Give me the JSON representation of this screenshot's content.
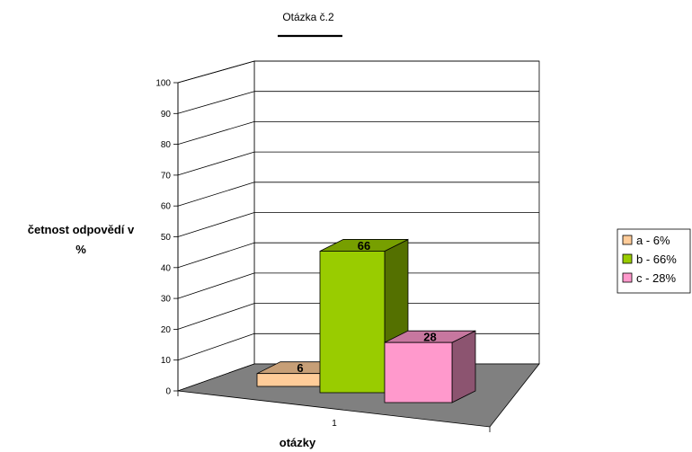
{
  "chart_data": {
    "type": "bar",
    "title": "Otázka č.2",
    "xlabel": "otázky",
    "ylabel_lines": [
      "četnost odpovědí v",
      "%"
    ],
    "ylim": [
      0,
      100
    ],
    "yticks": [
      0,
      10,
      20,
      30,
      40,
      50,
      60,
      70,
      80,
      90,
      100
    ],
    "categories": [
      "1"
    ],
    "series": [
      {
        "name": "a - 6%",
        "value": 6,
        "label": "6",
        "color": "#FFCC99"
      },
      {
        "name": "b - 66%",
        "value": 66,
        "label": "66",
        "color": "#99CC00"
      },
      {
        "name": "c - 28%",
        "value": 28,
        "label": "28",
        "color": "#FF99CC"
      }
    ],
    "grid": true,
    "legend_position": "right"
  }
}
